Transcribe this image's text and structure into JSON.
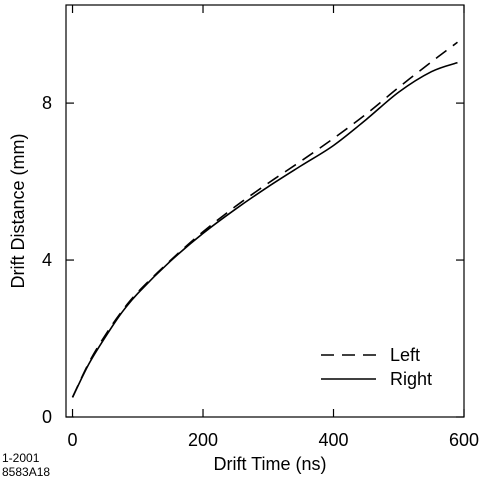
{
  "chart_data": {
    "type": "line",
    "xlabel": "Drift Time  (ns)",
    "ylabel": "Drift Distance  (mm)",
    "xlim": [
      -10,
      600
    ],
    "ylim": [
      0,
      10.5
    ],
    "x_ticks": [
      0,
      200,
      400,
      600
    ],
    "x_tick_labels": [
      "0",
      "200",
      "400",
      "600"
    ],
    "y_ticks": [
      0,
      4,
      8
    ],
    "y_tick_labels": [
      "0",
      "4",
      "8"
    ],
    "grid": false,
    "legend": "bottom-right",
    "series": [
      {
        "name": "Left",
        "style": "dashed",
        "color": "#000000",
        "x": [
          0,
          25,
          50,
          75,
          100,
          150,
          200,
          250,
          300,
          350,
          400,
          450,
          500,
          550,
          590
        ],
        "y": [
          0.5,
          1.38,
          2.08,
          2.68,
          3.18,
          3.99,
          4.72,
          5.37,
          5.96,
          6.52,
          7.1,
          7.72,
          8.4,
          9.05,
          9.55
        ]
      },
      {
        "name": "Right",
        "style": "solid",
        "color": "#000000",
        "x": [
          0,
          25,
          50,
          75,
          100,
          150,
          200,
          250,
          300,
          350,
          400,
          450,
          500,
          550,
          590
        ],
        "y": [
          0.5,
          1.35,
          2.03,
          2.65,
          3.15,
          3.97,
          4.68,
          5.3,
          5.87,
          6.4,
          6.92,
          7.58,
          8.28,
          8.8,
          9.03
        ]
      }
    ]
  },
  "figure_id": [
    "1-2001",
    "8583A18"
  ]
}
